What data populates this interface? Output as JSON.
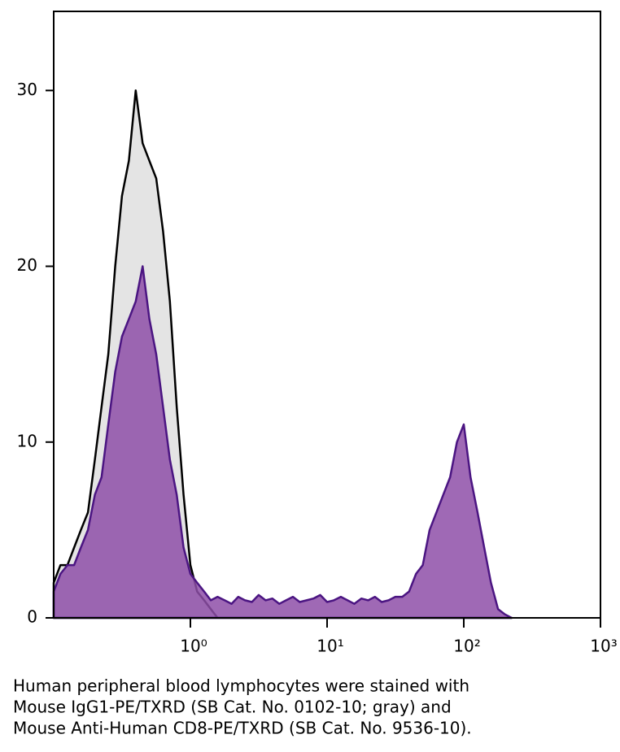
{
  "chart_data": {
    "type": "histogram-overlay",
    "xscale": "log",
    "xlim": [
      0.1,
      1000
    ],
    "ylim": [
      0,
      34.5
    ],
    "xticks": [
      {
        "value": 1,
        "label": "10⁰"
      },
      {
        "value": 10,
        "label": "10¹"
      },
      {
        "value": 100,
        "label": "10²"
      },
      {
        "value": 1000,
        "label": "10³"
      }
    ],
    "yticks": [
      0,
      10,
      20,
      30
    ],
    "x": [
      0.1,
      0.112,
      0.126,
      0.141,
      0.158,
      0.178,
      0.2,
      0.224,
      0.251,
      0.282,
      0.316,
      0.355,
      0.398,
      0.447,
      0.501,
      0.562,
      0.631,
      0.708,
      0.794,
      0.891,
      1,
      1.12,
      1.26,
      1.41,
      1.58,
      1.78,
      2,
      2.24,
      2.51,
      2.82,
      3.16,
      3.55,
      3.98,
      4.47,
      5.01,
      5.62,
      6.31,
      7.08,
      7.94,
      8.91,
      10,
      11.2,
      12.6,
      14.1,
      15.8,
      17.8,
      20,
      22.4,
      25.1,
      28.2,
      31.6,
      35.5,
      39.8,
      44.7,
      50.1,
      56.2,
      63.1,
      70.8,
      79.4,
      89.1,
      100,
      112,
      126,
      141,
      158,
      178,
      200,
      224
    ],
    "series": [
      {
        "name": "gray",
        "color": "#e4e4e4",
        "stroke": "#000000",
        "values": [
          2,
          3,
          3,
          4,
          5,
          6,
          9,
          12,
          15,
          20,
          24,
          26,
          30,
          27,
          26,
          25,
          22,
          18,
          12,
          7,
          3,
          1.5,
          1,
          0.5,
          0,
          0,
          0,
          0,
          0,
          0,
          0,
          0,
          0,
          0,
          0,
          0,
          0,
          0,
          0,
          0,
          0,
          0,
          0,
          0,
          0,
          0,
          0,
          0,
          0,
          0,
          0,
          0,
          0,
          0,
          0,
          0,
          0,
          0,
          0,
          0,
          0,
          0,
          0,
          0,
          0,
          0,
          0,
          0
        ]
      },
      {
        "name": "CD8",
        "color": "#8e4fa8",
        "stroke": "#4b1582",
        "values": [
          1.5,
          2.5,
          3,
          3,
          4,
          5,
          7,
          8,
          11,
          14,
          16,
          17,
          18,
          20,
          17,
          15,
          12,
          9,
          7,
          4,
          2.5,
          2,
          1.5,
          1,
          1.2,
          1,
          0.8,
          1.2,
          1,
          0.9,
          1.3,
          1,
          1.1,
          0.8,
          1,
          1.2,
          0.9,
          1,
          1.1,
          1.3,
          0.9,
          1,
          1.2,
          1,
          0.8,
          1.1,
          1,
          1.2,
          0.9,
          1,
          1.2,
          1.2,
          1.5,
          2.5,
          3,
          5,
          6,
          7,
          8,
          10,
          11,
          8,
          6,
          4,
          2,
          0.5,
          0.2,
          0
        ]
      }
    ],
    "caption": [
      "Human peripheral blood lymphocytes were stained with",
      "Mouse IgG1-PE/TXRD (SB Cat. No. 0102-10; gray) and",
      "Mouse Anti-Human CD8-PE/TXRD (SB Cat. No. 9536-10)."
    ]
  }
}
